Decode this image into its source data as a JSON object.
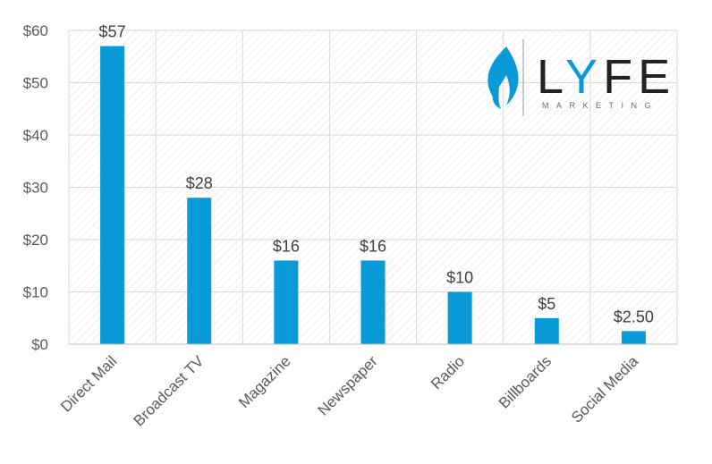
{
  "chart_data": {
    "type": "bar",
    "categories": [
      "Direct Mail",
      "Broadcast TV",
      "Magazine",
      "Newspaper",
      "Radio",
      "Billboards",
      "Social Media"
    ],
    "values": [
      57,
      28,
      16,
      16,
      10,
      5,
      2.5
    ],
    "data_labels": [
      "$57",
      "$28",
      "$16",
      "$16",
      "$10",
      "$5",
      "$2.50"
    ],
    "y_ticks": [
      "$0",
      "$10",
      "$20",
      "$30",
      "$40",
      "$50",
      "$60"
    ],
    "y_tick_values": [
      0,
      10,
      20,
      30,
      40,
      50,
      60
    ],
    "ylim": [
      0,
      60
    ],
    "title": "",
    "xlabel": "",
    "ylabel": "",
    "grid": true,
    "bar_color": "#0a9ad8"
  },
  "logo": {
    "letters": [
      "L",
      "Y",
      "F",
      "E"
    ],
    "subtext": "MARKETING",
    "accent_color": "#0a9ad8",
    "text_color": "#222222",
    "icon": "flame-icon"
  }
}
